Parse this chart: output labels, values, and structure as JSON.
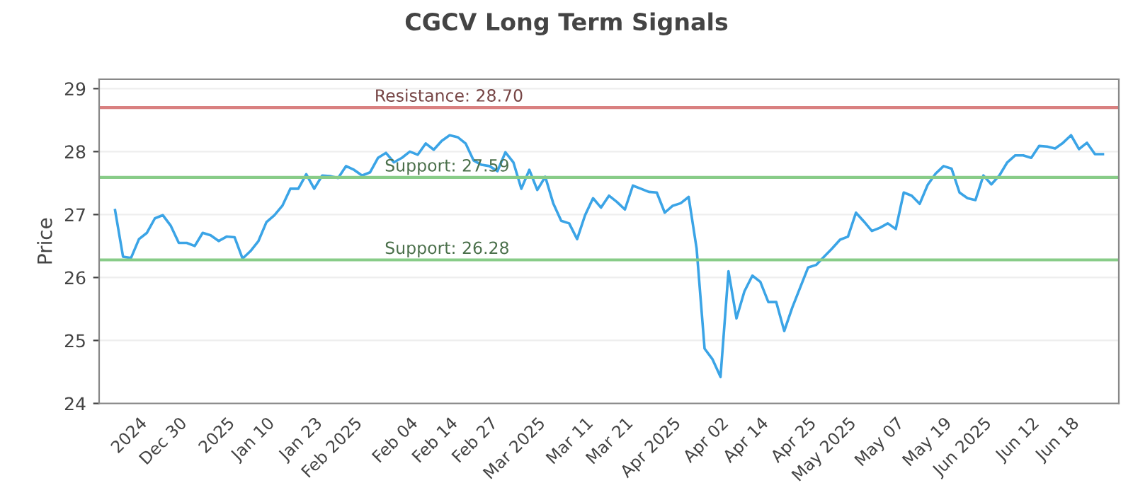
{
  "chart_data": {
    "type": "line",
    "title": "CGCV Long Term Signals",
    "ylabel": "Price",
    "categories": [
      null,
      null,
      null,
      "2024",
      null,
      null,
      null,
      null,
      "Dec 30",
      null,
      null,
      null,
      null,
      null,
      "2025",
      null,
      null,
      null,
      null,
      "Jan 10",
      null,
      null,
      null,
      null,
      null,
      "Jan 23",
      null,
      null,
      null,
      null,
      "Feb 2025",
      null,
      null,
      null,
      null,
      null,
      null,
      "Feb 04",
      null,
      null,
      null,
      null,
      "Feb 14",
      null,
      null,
      null,
      null,
      "Feb 27",
      null,
      null,
      null,
      null,
      null,
      "Mar 2025",
      null,
      null,
      null,
      null,
      null,
      "Mar 11",
      null,
      null,
      null,
      null,
      "Mar 21",
      null,
      null,
      null,
      null,
      null,
      "Apr 2025",
      null,
      null,
      null,
      null,
      null,
      "Apr 02",
      null,
      null,
      null,
      null,
      "Apr 14",
      null,
      null,
      null,
      null,
      null,
      "Apr 25",
      null,
      null,
      null,
      null,
      "May 2025",
      null,
      null,
      null,
      null,
      null,
      "May 07",
      null,
      null,
      null,
      null,
      null,
      "May 19",
      null,
      null,
      null,
      null,
      "Jun 2025",
      null,
      null,
      null,
      null,
      null,
      "Jun 12",
      null,
      null,
      null,
      null,
      "Jun 18",
      null,
      null,
      null,
      null
    ],
    "series": [
      {
        "color": "#3ba4e6",
        "values": [
          27.07,
          26.33,
          26.31,
          26.61,
          26.71,
          26.94,
          26.99,
          26.82,
          26.55,
          26.55,
          26.5,
          26.71,
          26.67,
          26.58,
          26.65,
          26.64,
          26.3,
          26.42,
          26.58,
          26.88,
          26.99,
          27.14,
          27.41,
          27.41,
          27.64,
          27.41,
          27.62,
          27.61,
          27.58,
          27.77,
          27.71,
          27.62,
          27.67,
          27.9,
          27.98,
          27.83,
          27.9,
          28.0,
          27.95,
          28.13,
          28.03,
          28.17,
          28.26,
          28.23,
          28.13,
          27.86,
          27.79,
          27.77,
          27.69,
          27.99,
          27.83,
          27.41,
          27.71,
          27.39,
          27.6,
          27.18,
          26.9,
          26.86,
          26.61,
          26.99,
          27.26,
          27.11,
          27.3,
          27.2,
          27.08,
          27.46,
          27.41,
          27.36,
          27.35,
          27.03,
          27.14,
          27.18,
          27.28,
          26.46,
          24.87,
          24.7,
          24.42,
          26.1,
          25.35,
          25.78,
          26.03,
          25.93,
          25.61,
          25.61,
          25.15,
          25.52,
          25.84,
          26.16,
          26.2,
          26.33,
          26.46,
          26.6,
          26.65,
          27.03,
          26.89,
          26.74,
          26.79,
          26.86,
          26.77,
          27.35,
          27.3,
          27.17,
          27.47,
          27.65,
          27.77,
          27.73,
          27.35,
          27.26,
          27.23,
          27.62,
          27.48,
          27.62,
          27.83,
          27.94,
          27.94,
          27.9,
          28.09,
          28.08,
          28.05,
          28.14,
          28.26,
          28.04,
          28.14,
          27.96,
          27.96
        ]
      }
    ],
    "ylim": [
      24,
      29.15
    ],
    "yticks": [
      24,
      25,
      26,
      27,
      28,
      29
    ],
    "grid": "y",
    "marker": "none",
    "line_style": "solid",
    "ref_lines": [
      {
        "axis": "y",
        "value": 28.7,
        "label": "Resistance: 28.70",
        "color": "#d98080"
      },
      {
        "axis": "y",
        "value": 27.59,
        "label": "Support: 27.59",
        "color": "#88cc88"
      },
      {
        "axis": "y",
        "value": 26.28,
        "label": "Support: 26.28",
        "color": "#88cc88"
      }
    ]
  }
}
